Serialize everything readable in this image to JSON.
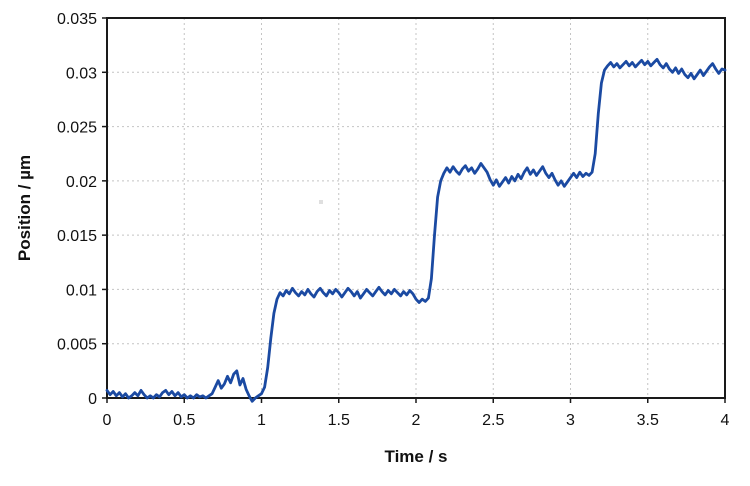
{
  "figure": {
    "background": "#ffffff"
  },
  "chart_data": {
    "type": "line",
    "title": "",
    "xlabel": "Time / s",
    "ylabel": "Position / µm",
    "xlim": [
      0,
      4
    ],
    "ylim": [
      0,
      0.035
    ],
    "x_ticks": [
      0,
      0.5,
      1,
      1.5,
      2,
      2.5,
      3,
      3.5,
      4
    ],
    "x_tick_labels": [
      "0",
      "0.5",
      "1",
      "1.5",
      "2",
      "2.5",
      "3",
      "3.5",
      "4"
    ],
    "y_ticks": [
      0,
      0.005,
      0.01,
      0.015,
      0.02,
      0.025,
      0.03,
      0.035
    ],
    "y_tick_labels": [
      "0",
      "0.005",
      "0.01",
      "0.015",
      "0.02",
      "0.025",
      "0.03",
      "0.035"
    ],
    "grid": true,
    "grid_style": "dotted",
    "legend": "none",
    "colors": {
      "line": "#1b4aa2",
      "grid": "#c4c4c4",
      "axis": "#1a1a1a",
      "text": "#111111"
    },
    "series": [
      {
        "name": "position-trace",
        "color": "#1b4aa2",
        "t_start": 0,
        "dt": 0.02,
        "values": [
          0.0007,
          0.0003,
          0.0006,
          0.0002,
          0.0005,
          0.0001,
          0.0004,
          0.0,
          0.0002,
          0.0005,
          0.0002,
          0.0007,
          0.0003,
          0.0,
          0.0002,
          0.0,
          0.0003,
          0.0001,
          0.0005,
          0.0007,
          0.0003,
          0.0006,
          0.0002,
          0.0005,
          0.0001,
          0.0003,
          0.0,
          0.0002,
          0.0,
          0.0003,
          0.0001,
          0.0002,
          0.0,
          0.0002,
          0.0004,
          0.001,
          0.0016,
          0.0009,
          0.0013,
          0.002,
          0.0014,
          0.0022,
          0.0025,
          0.0012,
          0.0018,
          0.0008,
          0.0002,
          -0.0003,
          0.0,
          0.0002,
          0.0004,
          0.001,
          0.0028,
          0.0055,
          0.0078,
          0.0091,
          0.0097,
          0.0094,
          0.0099,
          0.0096,
          0.0101,
          0.0097,
          0.0094,
          0.0098,
          0.0095,
          0.01,
          0.0096,
          0.0093,
          0.0098,
          0.0101,
          0.0097,
          0.0094,
          0.0099,
          0.0096,
          0.01,
          0.0097,
          0.0093,
          0.0097,
          0.0101,
          0.0098,
          0.0094,
          0.0098,
          0.0092,
          0.0096,
          0.01,
          0.0097,
          0.0094,
          0.0098,
          0.0102,
          0.0098,
          0.0095,
          0.0099,
          0.0096,
          0.01,
          0.0097,
          0.0094,
          0.0098,
          0.0095,
          0.0099,
          0.0096,
          0.0091,
          0.0088,
          0.0091,
          0.0089,
          0.0092,
          0.011,
          0.015,
          0.0185,
          0.02,
          0.0207,
          0.0212,
          0.0208,
          0.0213,
          0.0209,
          0.0206,
          0.0211,
          0.0214,
          0.0209,
          0.0212,
          0.0207,
          0.0211,
          0.0216,
          0.0212,
          0.0208,
          0.0201,
          0.0196,
          0.0201,
          0.0195,
          0.0199,
          0.0203,
          0.0198,
          0.0204,
          0.02,
          0.0206,
          0.0202,
          0.0208,
          0.0212,
          0.0206,
          0.021,
          0.0205,
          0.0209,
          0.0213,
          0.0207,
          0.0203,
          0.0207,
          0.0201,
          0.0196,
          0.02,
          0.0195,
          0.0199,
          0.0203,
          0.0207,
          0.0203,
          0.0208,
          0.0204,
          0.0207,
          0.0205,
          0.0208,
          0.0225,
          0.0262,
          0.029,
          0.0302,
          0.0306,
          0.0309,
          0.0305,
          0.0308,
          0.0304,
          0.0307,
          0.031,
          0.0306,
          0.0309,
          0.0305,
          0.0308,
          0.0311,
          0.0307,
          0.031,
          0.0306,
          0.0309,
          0.0312,
          0.0307,
          0.0304,
          0.0308,
          0.0303,
          0.03,
          0.0304,
          0.0299,
          0.0303,
          0.0298,
          0.0295,
          0.0299,
          0.0294,
          0.0298,
          0.0302,
          0.0297,
          0.0301,
          0.0305,
          0.0308,
          0.0303,
          0.0299,
          0.0303,
          0.0302
        ]
      }
    ]
  }
}
